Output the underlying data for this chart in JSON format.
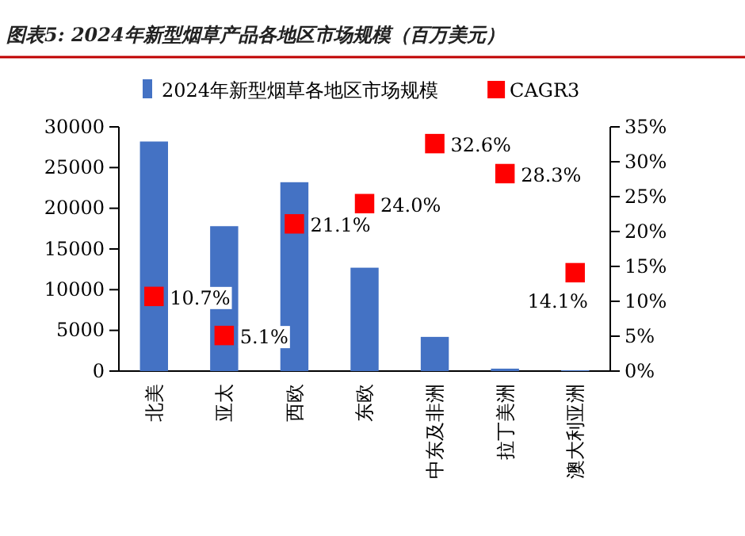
{
  "chart_data": {
    "type": "bar",
    "title": "图表5: 2024年新型烟草产品各地区市场规模（百万美元）",
    "categories": [
      "北美",
      "亚太",
      "西欧",
      "东欧",
      "中东及非洲",
      "拉丁美洲",
      "澳大利亚洲"
    ],
    "series": [
      {
        "name": "2024年新型烟草各地区市场规模",
        "color": "#4472c4",
        "values": [
          28200,
          17800,
          23200,
          12700,
          4200,
          300,
          100
        ]
      },
      {
        "name": "CAGR3",
        "type": "scatter",
        "axis": "y2",
        "color": "#ff0000",
        "values": [
          10.7,
          5.1,
          21.1,
          24.0,
          32.6,
          28.3,
          14.1
        ],
        "value_labels": [
          "10.7%",
          "5.1%",
          "21.1%",
          "24.0%",
          "32.6%",
          "28.3%",
          "14.1%"
        ]
      }
    ],
    "ylim": [
      0,
      30000
    ],
    "yticks": [
      0,
      5000,
      10000,
      15000,
      20000,
      25000,
      30000
    ],
    "y2lim": [
      0,
      35
    ],
    "y2ticks": [
      {
        "value": 0,
        "label": "0%"
      },
      {
        "value": 5,
        "label": "5%"
      },
      {
        "value": 10,
        "label": "10%"
      },
      {
        "value": 15,
        "label": "15%"
      },
      {
        "value": 20,
        "label": "20%"
      },
      {
        "value": 25,
        "label": "25%"
      },
      {
        "value": 30,
        "label": "30%"
      },
      {
        "value": 35,
        "label": "35%"
      }
    ],
    "marker": "square",
    "legend": "top",
    "grid": false
  }
}
